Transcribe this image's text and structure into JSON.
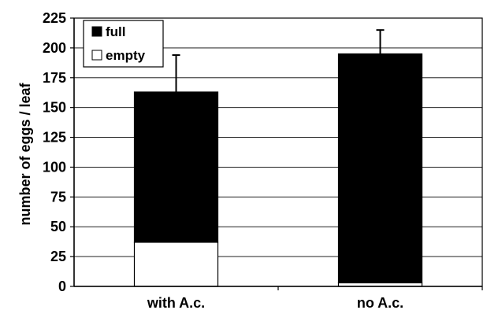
{
  "chart_data": {
    "type": "bar",
    "stacked": true,
    "categories": [
      "with A.c.",
      "no A.c."
    ],
    "series": [
      {
        "name": "empty",
        "values": [
          37,
          3
        ],
        "color": "#ffffff"
      },
      {
        "name": "full",
        "values": [
          126,
          192
        ],
        "color": "#000000"
      }
    ],
    "totals": [
      163,
      195
    ],
    "error_upper": [
      194,
      215
    ],
    "ylabel": "number of eggs / leaf",
    "xlabel": "",
    "ylim": [
      0,
      225
    ],
    "yticks": [
      0,
      25,
      50,
      75,
      100,
      125,
      150,
      175,
      200,
      225
    ],
    "grid": true,
    "legend_position": "top-left",
    "legend_order": [
      "full",
      "empty"
    ]
  }
}
